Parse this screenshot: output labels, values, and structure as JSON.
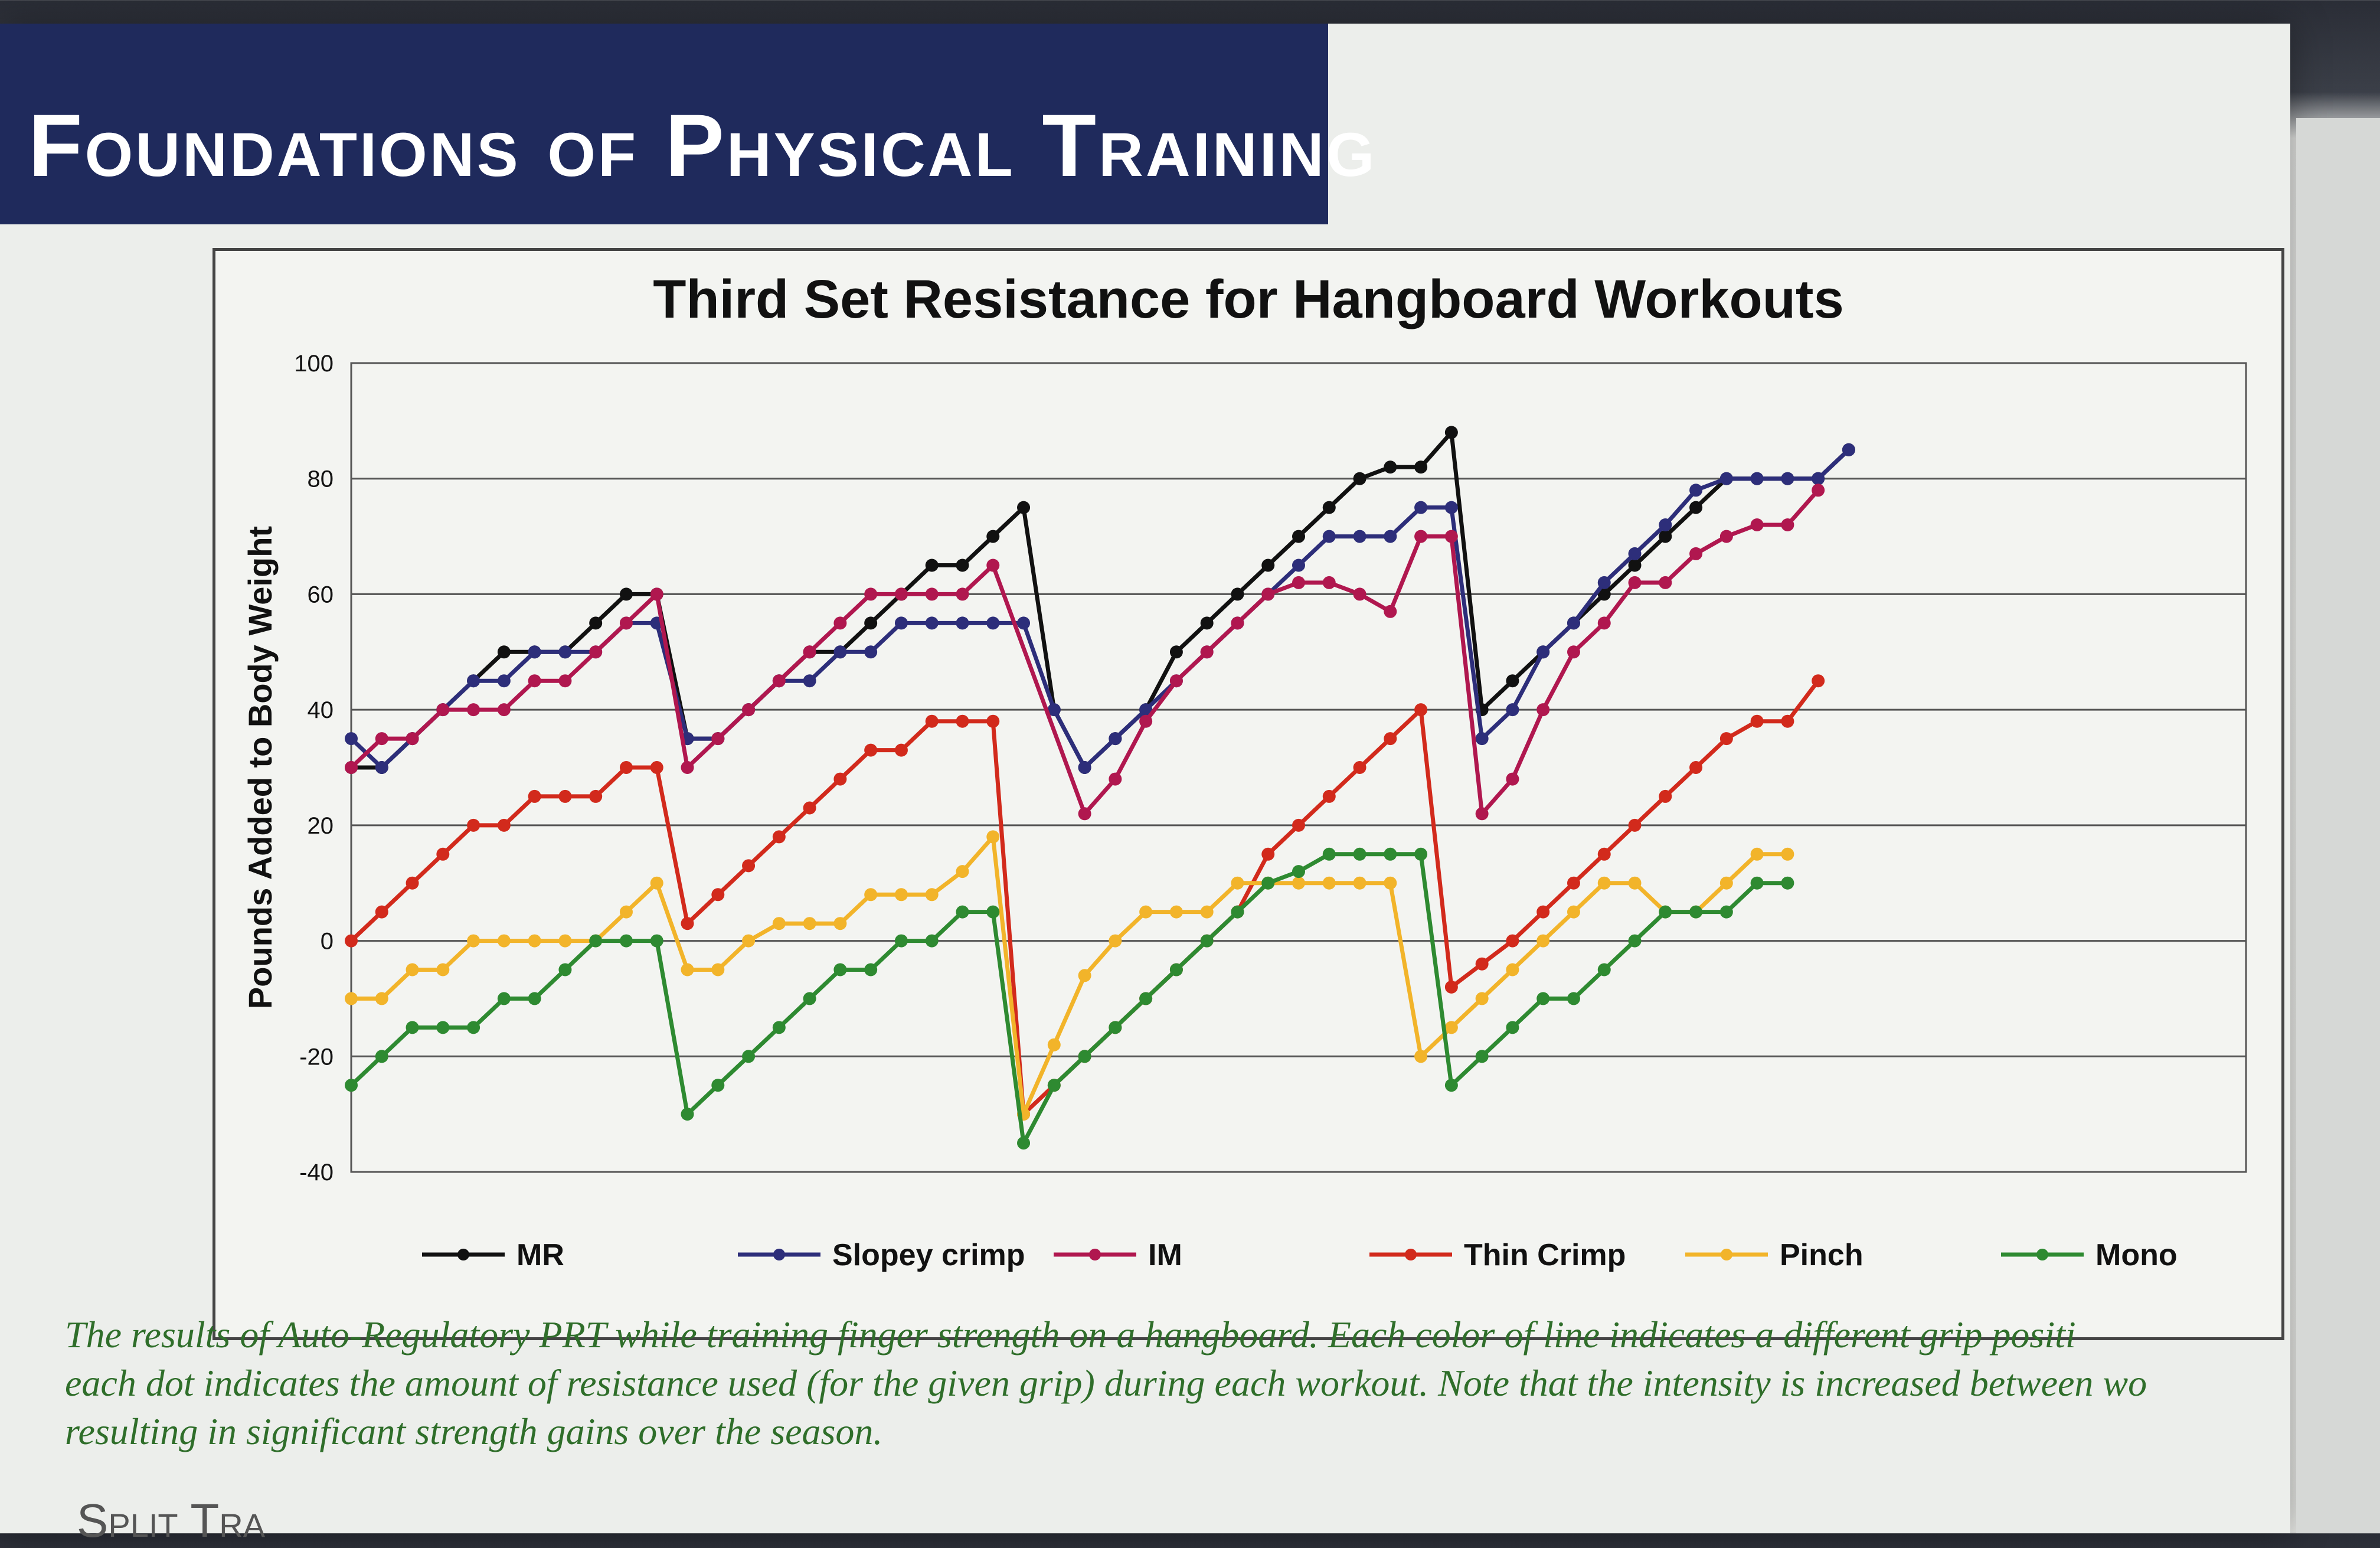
{
  "header": {
    "title": "Foundations of Physical Training"
  },
  "caption": {
    "lines": [
      "The results of Auto-Regulatory PRT while training finger strength on a hangboard. Each color of line indicates a different grip positi",
      "each dot indicates the amount of resistance used (for the given grip) during each workout. Note that the intensity is increased between wo",
      "resulting in significant strength gains over the season."
    ]
  },
  "section_heading": "Split Tra",
  "colors": {
    "MR": "#111111",
    "Slopey crimp": "#2d2e7a",
    "IM": "#b0174f",
    "Thin Crimp": "#d22a1c",
    "Pinch": "#f2b42a",
    "Mono": "#2e8a31"
  },
  "chart_data": {
    "type": "line",
    "title": "Third Set Resistance for Hangboard Workouts",
    "xlabel": "",
    "ylabel": "Pounds Added to Body Weight",
    "ylim": [
      -40,
      100
    ],
    "yticks": [
      "100",
      "80",
      "60",
      "40",
      "20",
      "0",
      "-20",
      "-40"
    ],
    "grid": true,
    "legend_position": "bottom",
    "x": [
      1,
      2,
      3,
      4,
      5,
      6,
      7,
      8,
      9,
      10,
      11,
      12,
      13,
      14,
      15,
      16,
      17,
      18,
      19,
      20,
      21,
      22,
      23,
      24,
      25,
      26,
      27,
      28,
      29,
      30,
      31,
      32,
      33,
      34,
      35,
      36,
      37,
      38,
      39,
      40,
      41,
      42,
      43,
      44,
      45,
      46,
      47,
      48,
      49,
      50,
      51,
      52,
      53,
      54,
      55,
      56,
      57,
      58,
      59,
      60,
      61,
      62,
      63
    ],
    "series": [
      {
        "name": "MR",
        "values": [
          30,
          30,
          35,
          40,
          45,
          50,
          50,
          50,
          55,
          60,
          60,
          35,
          35,
          40,
          45,
          50,
          50,
          55,
          60,
          65,
          65,
          70,
          75,
          40,
          30,
          35,
          40,
          50,
          55,
          60,
          65,
          70,
          75,
          80,
          82,
          82,
          88,
          40,
          45,
          50,
          55,
          60,
          65,
          70,
          75,
          80,
          80,
          80,
          80,
          85,
          null,
          null,
          null,
          null,
          null,
          null,
          null,
          null,
          null,
          null,
          null,
          null,
          null
        ]
      },
      {
        "name": "Slopey crimp",
        "values": [
          35,
          30,
          35,
          40,
          45,
          45,
          50,
          50,
          50,
          55,
          55,
          35,
          35,
          40,
          45,
          45,
          50,
          50,
          55,
          55,
          55,
          55,
          55,
          40,
          30,
          35,
          40,
          45,
          50,
          55,
          60,
          65,
          70,
          70,
          70,
          75,
          75,
          35,
          40,
          50,
          55,
          62,
          67,
          72,
          78,
          80,
          80,
          80,
          80,
          85,
          null,
          null,
          null,
          null,
          null,
          null,
          null,
          null,
          null,
          null,
          null,
          null,
          null
        ]
      },
      {
        "name": "IM",
        "values": [
          30,
          35,
          35,
          40,
          40,
          40,
          45,
          45,
          50,
          55,
          60,
          30,
          35,
          40,
          45,
          50,
          55,
          60,
          60,
          60,
          60,
          65,
          null,
          null,
          22,
          28,
          38,
          45,
          50,
          55,
          60,
          62,
          62,
          60,
          57,
          70,
          70,
          22,
          28,
          40,
          50,
          55,
          62,
          62,
          67,
          70,
          72,
          72,
          78,
          null,
          null,
          null,
          null,
          null,
          null,
          null,
          null,
          null,
          null,
          null,
          null,
          null,
          null
        ]
      },
      {
        "name": "Thin Crimp",
        "values": [
          0,
          5,
          10,
          15,
          20,
          20,
          25,
          25,
          25,
          30,
          30,
          3,
          8,
          13,
          18,
          23,
          28,
          33,
          33,
          38,
          38,
          38,
          -30,
          -25,
          -20,
          -15,
          -10,
          -5,
          0,
          5,
          15,
          20,
          25,
          30,
          35,
          40,
          -8,
          -4,
          0,
          5,
          10,
          15,
          20,
          25,
          30,
          35,
          38,
          38,
          45,
          null,
          null,
          null,
          null,
          null,
          null,
          null,
          null,
          null,
          null,
          null,
          null,
          null,
          null
        ]
      },
      {
        "name": "Pinch",
        "values": [
          -10,
          -10,
          -5,
          -5,
          0,
          0,
          0,
          0,
          0,
          5,
          10,
          -5,
          -5,
          0,
          3,
          3,
          3,
          8,
          8,
          8,
          12,
          18,
          -30,
          -18,
          -6,
          0,
          5,
          5,
          5,
          10,
          10,
          10,
          10,
          10,
          10,
          -20,
          -15,
          -10,
          -5,
          0,
          5,
          10,
          10,
          5,
          5,
          10,
          15,
          15,
          null,
          null,
          null,
          null,
          null,
          null,
          null,
          null,
          null,
          null,
          null,
          null,
          null,
          null,
          null
        ]
      },
      {
        "name": "Mono",
        "values": [
          -25,
          -20,
          -15,
          -15,
          -15,
          -10,
          -10,
          -5,
          0,
          0,
          0,
          -30,
          -25,
          -20,
          -15,
          -10,
          -5,
          -5,
          0,
          0,
          5,
          5,
          -35,
          -25,
          -20,
          -15,
          -10,
          -5,
          0,
          5,
          10,
          12,
          15,
          15,
          15,
          15,
          -25,
          -20,
          -15,
          -10,
          -10,
          -5,
          0,
          5,
          5,
          5,
          10,
          10,
          null,
          null,
          null,
          null,
          null,
          null,
          null,
          null,
          null,
          null,
          null,
          null,
          null,
          null,
          null
        ]
      }
    ]
  }
}
